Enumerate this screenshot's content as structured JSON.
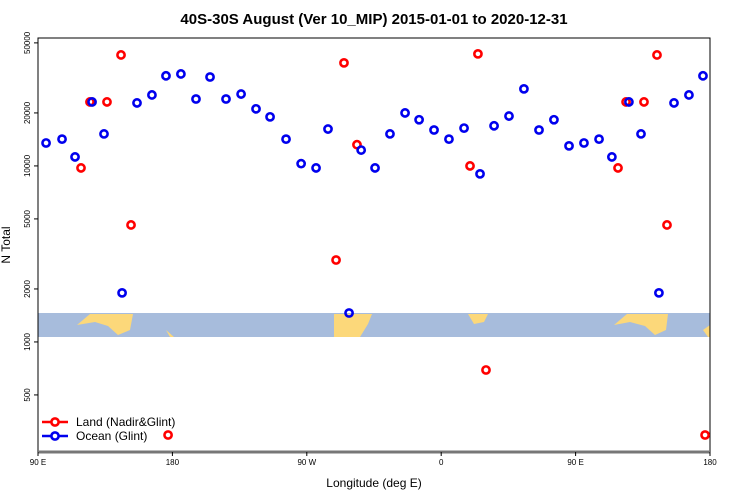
{
  "chart_data": {
    "type": "scatter",
    "title": "40S-30S August (Ver 10_MIP)   2015-01-01 to 2020-12-31",
    "x_label": "Longitude (deg E)",
    "y_label": "N Total",
    "y_log": true,
    "legend_position": "bottom-left",
    "xlim": [
      90,
      540
    ],
    "xticks": [
      {
        "value": 90,
        "label": "90 E"
      },
      {
        "value": 180,
        "label": "180"
      },
      {
        "value": 270,
        "label": "90 W"
      },
      {
        "value": 360,
        "label": "0"
      },
      {
        "value": 450,
        "label": "90 E"
      },
      {
        "value": 540,
        "label": "180"
      }
    ],
    "ylim": [
      237,
      53300
    ],
    "yticks": [
      500,
      1000,
      2000,
      5000,
      10000,
      20000,
      50000
    ],
    "series": [
      {
        "name": "Land (Nadir&Glint)",
        "color": "#ff0000",
        "x": [
          118.8,
          124.8,
          136.2,
          145.6,
          152.3,
          177.1,
          289.6,
          294.9,
          303.6,
          379.3,
          384.6,
          390.0,
          478.4,
          483.8,
          495.8,
          504.5,
          511.2,
          536.7
        ],
        "values": [
          9740,
          23100,
          23100,
          42700,
          4620,
          296,
          2920,
          38500,
          13200,
          10000,
          43300,
          693,
          9740,
          23100,
          23100,
          42700,
          4620,
          296
        ]
      },
      {
        "name": "Ocean (Glint)",
        "color": "#0000ee",
        "x": [
          95.4,
          106.1,
          114.8,
          126.2,
          134.2,
          146.3,
          156.3,
          166.3,
          175.7,
          185.7,
          195.8,
          205.2,
          215.9,
          226.0,
          236.0,
          245.4,
          256.1,
          266.2,
          276.2,
          284.2,
          298.3,
          306.4,
          315.7,
          325.7,
          335.8,
          345.2,
          355.2,
          365.2,
          375.3,
          386.0,
          395.4,
          405.4,
          415.4,
          425.5,
          435.5,
          445.6,
          455.6,
          465.7,
          474.3,
          485.7,
          493.8,
          505.8,
          515.9,
          525.9,
          535.3
        ],
        "values": [
          13500,
          14200,
          11250,
          23100,
          15200,
          1900,
          22800,
          25300,
          32500,
          33300,
          24000,
          32000,
          24000,
          25600,
          21100,
          19000,
          14200,
          10300,
          9740,
          16200,
          1460,
          12300,
          9740,
          15200,
          20000,
          18300,
          16000,
          14200,
          16400,
          9010,
          16900,
          19200,
          27400,
          16000,
          18300,
          13000,
          13500,
          14200,
          11250,
          23100,
          15200,
          1900,
          22800,
          25300,
          32500
        ]
      }
    ]
  }
}
